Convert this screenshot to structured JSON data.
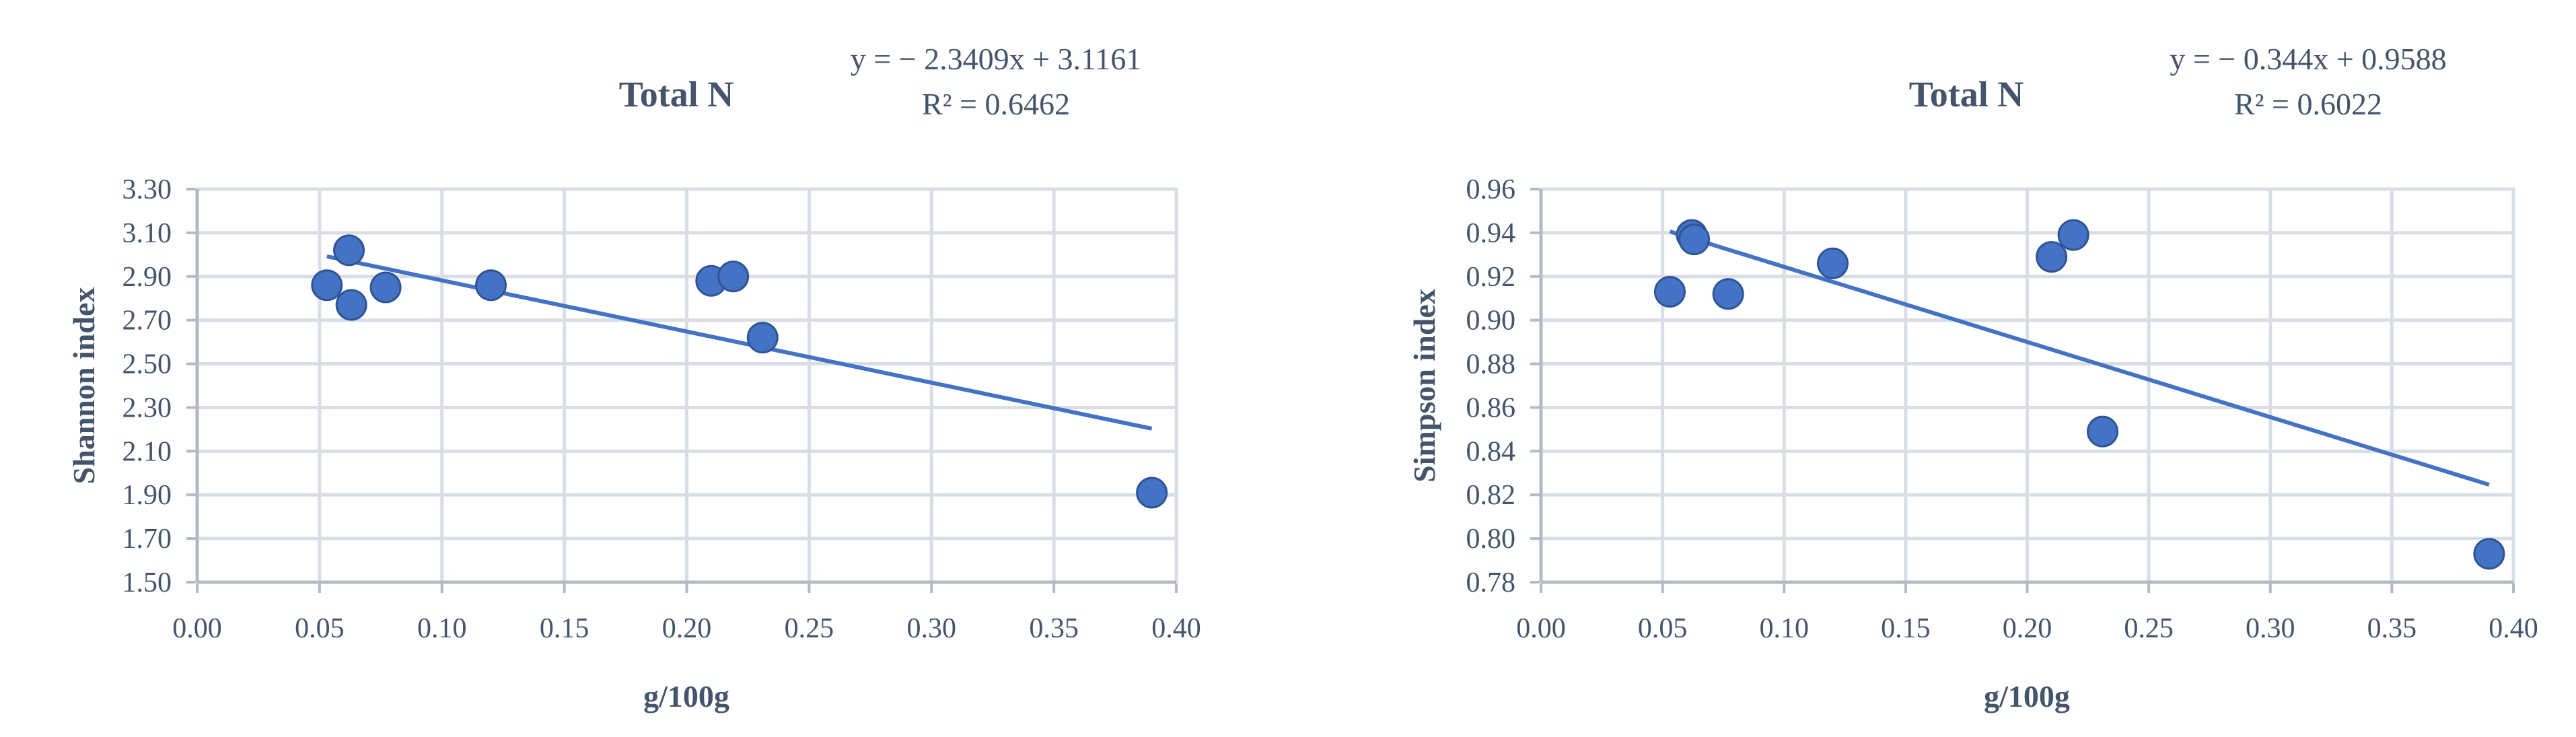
{
  "chart_data": [
    {
      "type": "scatter",
      "title": "Total N",
      "equation": "y = − 2.3409x + 3.1161",
      "r_squared": "R² = 0.6462",
      "xlabel": "g/100g",
      "ylabel": "Shannon index",
      "xlim": [
        0,
        0.4
      ],
      "ylim": [
        1.5,
        3.3
      ],
      "xticks": [
        "0.00",
        "0.05",
        "0.10",
        "0.15",
        "0.20",
        "0.25",
        "0.30",
        "0.35",
        "0.40"
      ],
      "yticks": [
        "1.50",
        "1.70",
        "1.90",
        "2.10",
        "2.30",
        "2.50",
        "2.70",
        "2.90",
        "3.10",
        "3.30"
      ],
      "grid": true,
      "trendline": {
        "slope": -2.3409,
        "intercept": 3.1161,
        "x_range": [
          0.053,
          0.39
        ]
      },
      "x": [
        0.053,
        0.062,
        0.063,
        0.077,
        0.12,
        0.21,
        0.219,
        0.231,
        0.39
      ],
      "y": [
        2.86,
        3.02,
        2.77,
        2.85,
        2.86,
        2.88,
        2.9,
        2.62,
        1.91
      ],
      "color": "#4472c4"
    },
    {
      "type": "scatter",
      "title": "Total N",
      "equation": "y = − 0.344x + 0.9588",
      "r_squared": "R² = 0.6022",
      "xlabel": "g/100g",
      "ylabel": "Simpson index",
      "xlim": [
        0,
        0.4
      ],
      "ylim": [
        0.78,
        0.96
      ],
      "xticks": [
        "0.00",
        "0.05",
        "0.10",
        "0.15",
        "0.20",
        "0.25",
        "0.30",
        "0.35",
        "0.40"
      ],
      "yticks": [
        "0.78",
        "0.80",
        "0.82",
        "0.84",
        "0.86",
        "0.88",
        "0.90",
        "0.92",
        "0.94",
        "0.96"
      ],
      "grid": true,
      "trendline": {
        "slope": -0.344,
        "intercept": 0.9588,
        "x_range": [
          0.053,
          0.39
        ]
      },
      "x": [
        0.053,
        0.062,
        0.063,
        0.077,
        0.12,
        0.21,
        0.219,
        0.231,
        0.39
      ],
      "y": [
        0.913,
        0.939,
        0.937,
        0.912,
        0.926,
        0.929,
        0.939,
        0.849,
        0.793
      ],
      "color": "#4472c4"
    }
  ]
}
